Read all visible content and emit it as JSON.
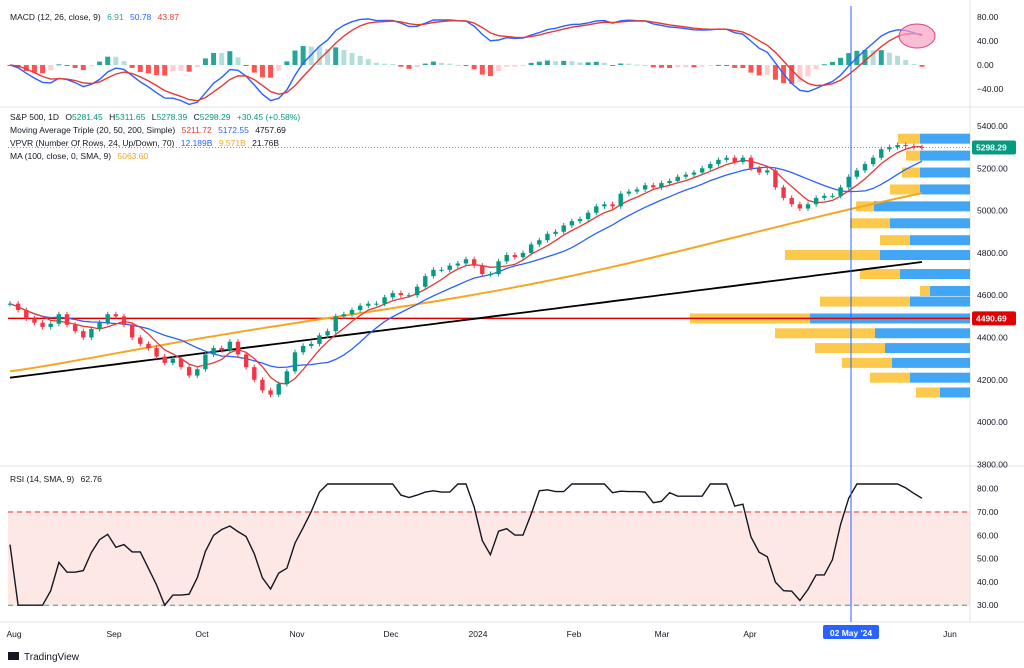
{
  "chart_data": {
    "type": "candlestick",
    "symbol": "S&P 500",
    "interval": "1D",
    "ohlc": {
      "open_label": "O",
      "open": "5281.45",
      "high_label": "H",
      "high": "5311.65",
      "low_label": "L",
      "low": "5278.39",
      "close_label": "C",
      "close": "5298.29",
      "change": "+30.45 (+0.58%)"
    },
    "indicators": {
      "ma_triple": {
        "name": "Moving Average Triple (20, 50, 200, Simple)",
        "ma20": "5211.72",
        "ma50": "5172.55",
        "ma200": "4757.69",
        "colors": [
          "#e53935",
          "#2962ff",
          "#000000"
        ]
      },
      "vpvr": {
        "name": "VPVR (Number Of Rows, 24, Up/Down, 70)",
        "up": "12.189B",
        "down": "9.571B",
        "total": "21.76B"
      },
      "ma100": {
        "name": "MA (100, close, 0, SMA, 9)",
        "value": "5063.60",
        "color": "#f5a623"
      },
      "macd": {
        "name": "MACD (12, 26, close, 9)",
        "hist": "6.91",
        "macd": "50.78",
        "signal": "43.87"
      },
      "rsi": {
        "name": "RSI (14, SMA, 9)",
        "value": "62.76",
        "overbought": 70,
        "oversold": 30
      }
    },
    "price_axis": {
      "ticks": [
        "5400.00",
        "5200.00",
        "5000.00",
        "4800.00",
        "4600.00",
        "4400.00",
        "4200.00",
        "4000.00",
        "3800.00"
      ],
      "last_price": "5298.29",
      "highlight_level": "4490.69"
    },
    "macd_axis": {
      "ticks": [
        "80.00",
        "40.00",
        "0.00",
        "−40.00"
      ]
    },
    "rsi_axis": {
      "ticks": [
        "80.00",
        "70.00",
        "60.00",
        "50.00",
        "40.00",
        "30.00"
      ]
    },
    "x_axis": {
      "ticks": [
        "Aug",
        "Sep",
        "Oct",
        "Nov",
        "Dec",
        "2024",
        "Feb",
        "Mar",
        "Apr",
        "Jun"
      ],
      "crosshair_label": "02 May '24"
    },
    "close_series": [
      4560,
      4530,
      4490,
      4470,
      4450,
      4465,
      4510,
      4460,
      4430,
      4400,
      4440,
      4470,
      4510,
      4500,
      4460,
      4400,
      4370,
      4350,
      4310,
      4280,
      4300,
      4260,
      4220,
      4250,
      4320,
      4350,
      4340,
      4380,
      4320,
      4260,
      4200,
      4150,
      4130,
      4180,
      4240,
      4330,
      4360,
      4370,
      4410,
      4430,
      4500,
      4510,
      4530,
      4550,
      4560,
      4560,
      4590,
      4610,
      4600,
      4600,
      4640,
      4690,
      4720,
      4720,
      4740,
      4750,
      4770,
      4740,
      4700,
      4700,
      4760,
      4790,
      4780,
      4800,
      4840,
      4860,
      4890,
      4900,
      4930,
      4950,
      4960,
      4990,
      5020,
      5030,
      5020,
      5080,
      5090,
      5100,
      5120,
      5110,
      5130,
      5140,
      5160,
      5170,
      5180,
      5200,
      5220,
      5240,
      5250,
      5230,
      5250,
      5200,
      5180,
      5190,
      5110,
      5060,
      5030,
      5010,
      5030,
      5060,
      5070,
      5070,
      5110,
      5160,
      5190,
      5220,
      5250,
      5290,
      5300,
      5310,
      5305,
      5300,
      5298
    ]
  },
  "brand": {
    "name": "TradingView"
  }
}
